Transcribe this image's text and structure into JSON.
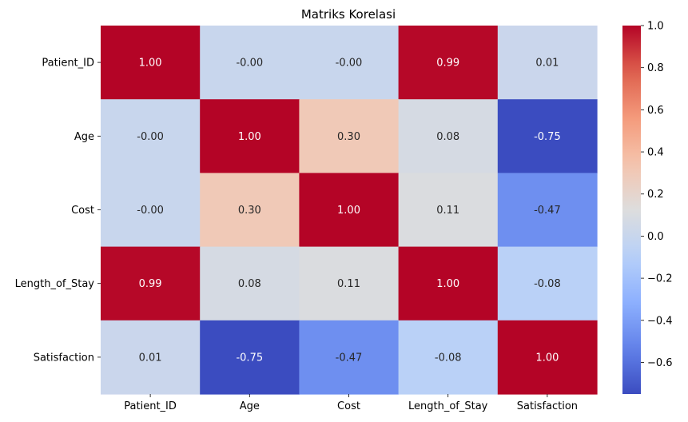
{
  "chart_data": {
    "type": "heatmap",
    "title": "Matriks Korelasi",
    "row_labels": [
      "Patient_ID",
      "Age",
      "Cost",
      "Length_of_Stay",
      "Satisfaction"
    ],
    "col_labels": [
      "Patient_ID",
      "Age",
      "Cost",
      "Length_of_Stay",
      "Satisfaction"
    ],
    "values": [
      [
        1.0,
        -0.0,
        -0.0,
        0.99,
        0.01
      ],
      [
        -0.0,
        1.0,
        0.3,
        0.08,
        -0.75
      ],
      [
        -0.0,
        0.3,
        1.0,
        0.11,
        -0.47
      ],
      [
        0.99,
        0.08,
        0.11,
        1.0,
        -0.08
      ],
      [
        0.01,
        -0.75,
        -0.47,
        -0.08,
        1.0
      ]
    ],
    "cell_labels": [
      [
        "1.00",
        "-0.00",
        "-0.00",
        "0.99",
        "0.01"
      ],
      [
        "-0.00",
        "1.00",
        "0.30",
        "0.08",
        "-0.75"
      ],
      [
        "-0.00",
        "0.30",
        "1.00",
        "0.11",
        "-0.47"
      ],
      [
        "0.99",
        "0.08",
        "0.11",
        "1.00",
        "-0.08"
      ],
      [
        "0.01",
        "-0.75",
        "-0.47",
        "-0.08",
        "1.00"
      ]
    ],
    "colormap": "coolwarm",
    "vmin": -0.75,
    "vmax": 1.0,
    "colorbar_ticks": [
      1.0,
      0.8,
      0.6,
      0.4,
      0.2,
      0.0,
      -0.2,
      -0.4,
      -0.6
    ],
    "colorbar_tick_labels": [
      "1.0",
      "0.8",
      "0.6",
      "0.4",
      "0.2",
      "0.0",
      "−0.2",
      "−0.4",
      "−0.6"
    ],
    "grid": false,
    "legend": "colorbar-right"
  }
}
